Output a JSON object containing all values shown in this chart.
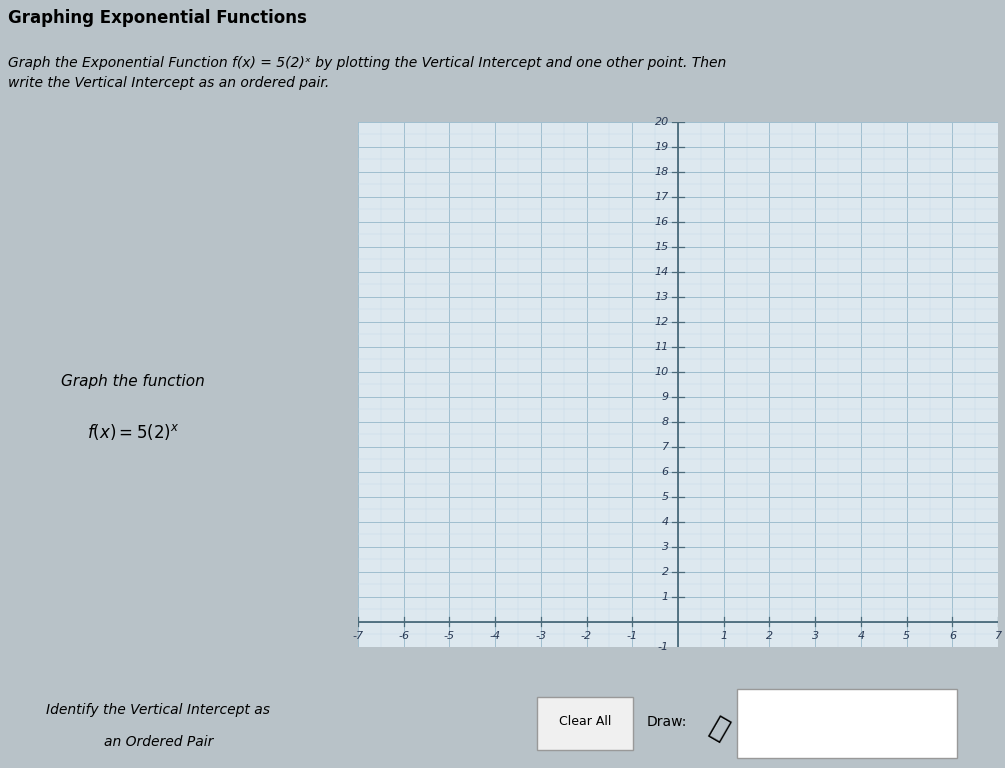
{
  "title": "Graphing Exponential Functions",
  "instruction_line1": "Graph the Exponential Function f(x) = 5(2)ˣ by plotting the Vertical Intercept and one other point. Then",
  "instruction_line2": "write the Vertical Intercept as an ordered pair.",
  "left_panel_text1": "Graph the function",
  "left_panel_text2": "f(x) = 5(2)ˣ",
  "bottom_left_text1": "Identify the Vertical Intercept as",
  "bottom_left_text2": "an Ordered Pair",
  "clear_all_text": "Clear All",
  "draw_text": "Draw:",
  "x_min": -7,
  "x_max": 7,
  "y_min": -1,
  "y_max": 20,
  "grid_major_color": "#a0bece",
  "grid_minor_color": "#c5d8e8",
  "axis_line_color": "#4a6a7a",
  "bg_graph": "#dde8ef",
  "bg_left_panel": "#cdd5da",
  "bg_title": "#c8d0d5",
  "bg_instr": "#d5dce0",
  "bg_bottom": "#cdd5da",
  "fig_bg": "#b8c2c8",
  "text_color_dark": "#1a2535",
  "border_color": "#8a9aa5",
  "tick_label_color": "#2a3a55"
}
